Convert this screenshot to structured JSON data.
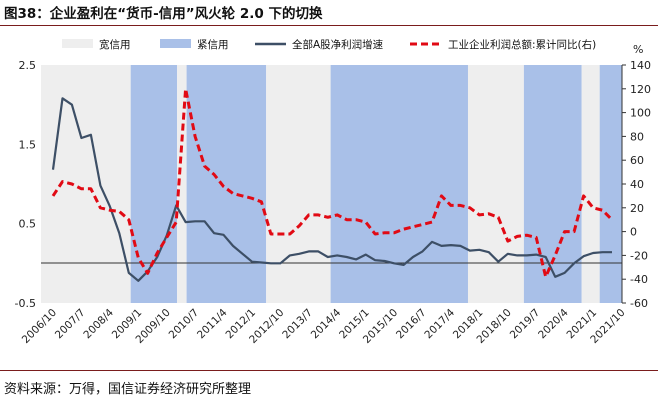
{
  "figure": {
    "title": "图38：企业盈利在“货币-信用”风火轮 2.0 下的切换",
    "source": "资料来源：万得，国信证券经济研究所整理"
  },
  "chart_data": {
    "type": "line",
    "regimes": {
      "legend": [
        "宽信用",
        "紧信用"
      ],
      "loose_color": "#eeeeee",
      "tight_color": "#a9c0e8",
      "order": [
        "loose",
        "tight",
        "loose",
        "tight",
        "loose",
        "tight",
        "loose",
        "tight",
        "loose",
        "tight",
        "loose"
      ]
    },
    "x_tick_labels": [
      "2006/10",
      "2007/7",
      "2008/4",
      "2009/1",
      "2009/10",
      "2010/7",
      "2011/4",
      "2012/1",
      "2012/10",
      "2013/7",
      "2014/4",
      "2015/1",
      "2015/10",
      "2016/7",
      "2017/4",
      "2018/1",
      "2018/10",
      "2019/7",
      "2020/4",
      "2021/1",
      "2021/10"
    ],
    "y_left": {
      "min": -0.5,
      "max": 2.5,
      "ticks": [
        -0.5,
        0.5,
        1.5,
        2.5
      ],
      "unit": ""
    },
    "y_right": {
      "min": -60,
      "max": 140,
      "ticks": [
        -60,
        -40,
        -20,
        0,
        20,
        40,
        60,
        80,
        100,
        120,
        140
      ],
      "unit": "%"
    },
    "series": [
      {
        "name": "全部A股净利润增速",
        "axis": "left",
        "color": "#3d4f66",
        "style": "solid",
        "values": [
          1.18,
          2.08,
          2.0,
          1.58,
          1.62,
          0.98,
          0.72,
          0.38,
          -0.12,
          -0.22,
          -0.1,
          0.08,
          0.35,
          0.73,
          0.52,
          0.53,
          0.53,
          0.38,
          0.36,
          0.22,
          0.12,
          0.02,
          0.01,
          0.0,
          0.0,
          0.1,
          0.12,
          0.15,
          0.15,
          0.08,
          0.1,
          0.08,
          0.05,
          0.11,
          0.04,
          0.03,
          0.0,
          -0.02,
          0.08,
          0.15,
          0.27,
          0.22,
          0.23,
          0.22,
          0.16,
          0.17,
          0.14,
          0.02,
          0.12,
          0.1,
          0.1,
          0.11,
          0.08,
          -0.17,
          -0.12,
          0.0,
          0.09,
          0.13,
          0.14,
          0.14
        ]
      },
      {
        "name": "工业企业利润总额:累计同比(右)",
        "axis": "right",
        "color": "#e10a14",
        "style": "dashed",
        "values": [
          30,
          42,
          40,
          36,
          36,
          20,
          18,
          17,
          10,
          -22,
          -35,
          -18,
          -5,
          8,
          120,
          80,
          55,
          48,
          38,
          32,
          30,
          28,
          25,
          -2,
          -2,
          -2,
          5,
          14,
          14,
          12,
          14,
          10,
          10,
          8,
          -2,
          -1,
          -1,
          2,
          4,
          6,
          8,
          30,
          22,
          22,
          20,
          14,
          15,
          12,
          -8,
          -4,
          -3,
          -5,
          -38,
          -20,
          0,
          0,
          30,
          20,
          18,
          10
        ]
      }
    ]
  }
}
